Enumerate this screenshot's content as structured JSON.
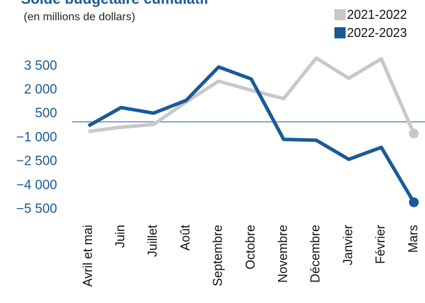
{
  "chart_data": {
    "type": "line",
    "title": "Solde budgétaire cumulatif",
    "subtitle": "(en millions de dollars)",
    "categories": [
      "Avril et mai",
      "Juin",
      "Juillet",
      "Août",
      "Septembre",
      "Octobre",
      "Novembre",
      "Décembre",
      "Janvier",
      "Février",
      "Mars"
    ],
    "series": [
      {
        "name": "2021-2022",
        "color": "#c8c8c8",
        "values": [
          -600,
          -330,
          -160,
          1250,
          2560,
          1990,
          1460,
          4010,
          2740,
          3960,
          -730
        ]
      },
      {
        "name": "2022-2023",
        "color": "#1a5a96",
        "values": [
          -250,
          900,
          550,
          1350,
          3450,
          2700,
          -1100,
          -1150,
          -2350,
          -1600,
          -5050
        ]
      }
    ],
    "ylim": [
      -5500,
      4500
    ],
    "yticks": [
      {
        "value": 3500,
        "label": "3 500"
      },
      {
        "value": 2000,
        "label": "2 000"
      },
      500,
      {
        "value": -1000,
        "label": "−1 000"
      },
      {
        "value": -2500,
        "label": "−2 500"
      },
      {
        "value": -4000,
        "label": "−4 000"
      },
      {
        "value": -5500,
        "label": "−5 500"
      }
    ],
    "legend": "top-right"
  }
}
